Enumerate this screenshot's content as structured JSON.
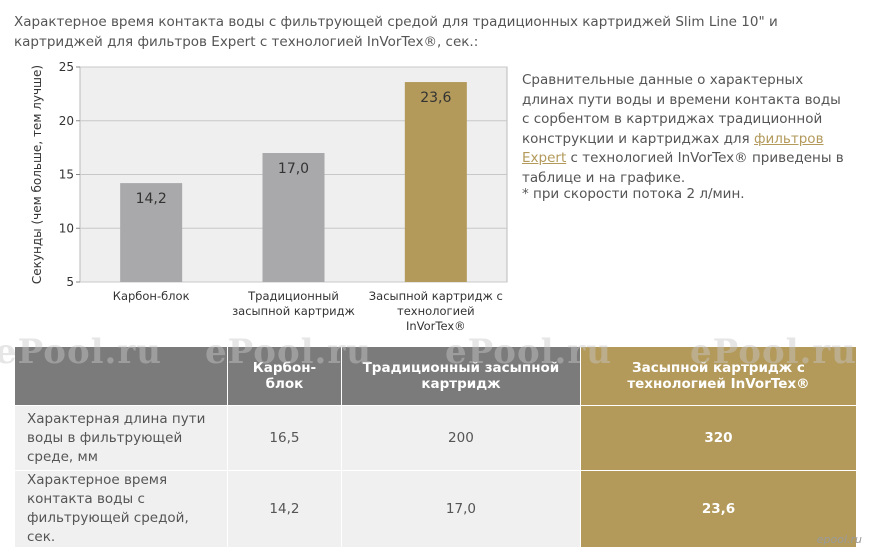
{
  "heading": "Характерное время контакта воды с фильтрующей средой для традиционных картриджей Slim Line 10\" и картриджей для фильтров Expert с технологией InVorTex®, сек.:",
  "chart_data": {
    "type": "bar",
    "y_label": "Секунды (чем больше, тем лучше)",
    "categories": [
      "Карбон-блок",
      "Традиционный\nзасыпной картридж",
      "Засыпной картридж с\nтехнологией InVorTex®"
    ],
    "values": [
      14.2,
      17.0,
      23.6
    ],
    "value_labels": [
      "14,2",
      "17,0",
      "23,6"
    ],
    "colors": [
      "#a9a9ab",
      "#a9a9ab",
      "#b39a5b"
    ],
    "ylim": [
      5,
      25
    ],
    "yticks": [
      5,
      10,
      15,
      20,
      25
    ],
    "grid": true
  },
  "description": {
    "before": "Сравнительные данные о характерных длинах пути воды и времени контакта воды с сорбентом в картриджах традиционной конструкции и картриджах для ",
    "link": "фильтров Expert",
    "after": " с технологией InVorTex® приведены в таблице и на графике."
  },
  "footnote": "* при скорости потока 2 л/мин.",
  "watermark": "ePool.ru",
  "logo": "epool.ru",
  "table": {
    "columns": [
      "Карбон-блок",
      "Традиционный засыпной картридж",
      "Засыпной картридж с технологией InVorTex®"
    ],
    "rows": [
      [
        "Характерная длина пути воды в фильтрующей среде, мм",
        "16,5",
        "200",
        "320"
      ],
      [
        "Характерное время контакта воды с фильтрующей средой, сек.",
        "14,2",
        "17,0",
        "23,6"
      ]
    ]
  }
}
